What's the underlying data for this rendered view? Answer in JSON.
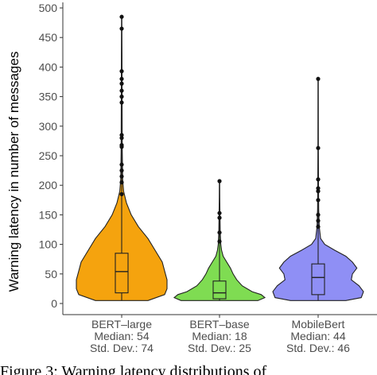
{
  "chart_data": {
    "type": "violin",
    "ylabel": "Warning latency in number of messages",
    "ylim": [
      -15,
      510
    ],
    "yticks": [
      0,
      50,
      100,
      150,
      200,
      250,
      300,
      350,
      400,
      450,
      500
    ],
    "grid": false,
    "groups": [
      {
        "name": "BERT–large",
        "label_lines": [
          "BERT–large",
          "Median: 54",
          "Std. Dev.: 74"
        ],
        "color": "#f5a30e",
        "box": {
          "q1": 18,
          "median": 54,
          "q3": 85,
          "whisker_low": 5,
          "whisker_high": 485
        },
        "outliers": [
          485,
          465,
          393,
          380,
          372,
          360,
          350,
          340,
          285,
          280,
          268,
          265,
          235,
          225,
          215,
          205,
          185
        ],
        "density": [
          [
            5,
            0.55
          ],
          [
            15,
            0.9
          ],
          [
            25,
            0.95
          ],
          [
            40,
            0.95
          ],
          [
            55,
            0.9
          ],
          [
            70,
            0.85
          ],
          [
            90,
            0.7
          ],
          [
            110,
            0.55
          ],
          [
            130,
            0.35
          ],
          [
            150,
            0.2
          ],
          [
            170,
            0.1
          ],
          [
            190,
            0.04
          ],
          [
            210,
            0.02
          ],
          [
            260,
            0.012
          ],
          [
            350,
            0.008
          ],
          [
            420,
            0.006
          ],
          [
            485,
            0.004
          ]
        ]
      },
      {
        "name": "BERT–base",
        "label_lines": [
          "BERT–base",
          "Median: 18",
          "Std. Dev.: 25"
        ],
        "color": "#7fdc52",
        "box": {
          "q1": 8,
          "median": 18,
          "q3": 38,
          "whisker_low": 5,
          "whisker_high": 207
        },
        "outliers": [
          207,
          153,
          145,
          120,
          105
        ],
        "density": [
          [
            5,
            0.85
          ],
          [
            10,
            1.0
          ],
          [
            15,
            0.92
          ],
          [
            20,
            0.72
          ],
          [
            30,
            0.5
          ],
          [
            40,
            0.38
          ],
          [
            50,
            0.3
          ],
          [
            60,
            0.24
          ],
          [
            70,
            0.16
          ],
          [
            80,
            0.08
          ],
          [
            90,
            0.045
          ],
          [
            100,
            0.028
          ],
          [
            120,
            0.016
          ],
          [
            150,
            0.01
          ],
          [
            180,
            0.006
          ],
          [
            207,
            0.004
          ]
        ]
      },
      {
        "name": "MobileBert",
        "label_lines": [
          "MobileBert",
          "Median: 44",
          "Std. Dev.: 46"
        ],
        "color": "#8f8ff5",
        "box": {
          "q1": 15,
          "median": 44,
          "q3": 67,
          "whisker_low": 5,
          "whisker_high": 380
        },
        "outliers": [
          380,
          263,
          210,
          195,
          190,
          175,
          150,
          140,
          130
        ],
        "density": [
          [
            5,
            0.5
          ],
          [
            10,
            0.78
          ],
          [
            20,
            0.82
          ],
          [
            30,
            0.74
          ],
          [
            40,
            0.6
          ],
          [
            50,
            0.62
          ],
          [
            60,
            0.7
          ],
          [
            70,
            0.62
          ],
          [
            80,
            0.5
          ],
          [
            90,
            0.3
          ],
          [
            100,
            0.12
          ],
          [
            110,
            0.045
          ],
          [
            130,
            0.02
          ],
          [
            160,
            0.01
          ],
          [
            200,
            0.007
          ],
          [
            260,
            0.005
          ],
          [
            380,
            0.003
          ]
        ]
      }
    ]
  },
  "caption": "Figure 3: Warning latency distributions of"
}
